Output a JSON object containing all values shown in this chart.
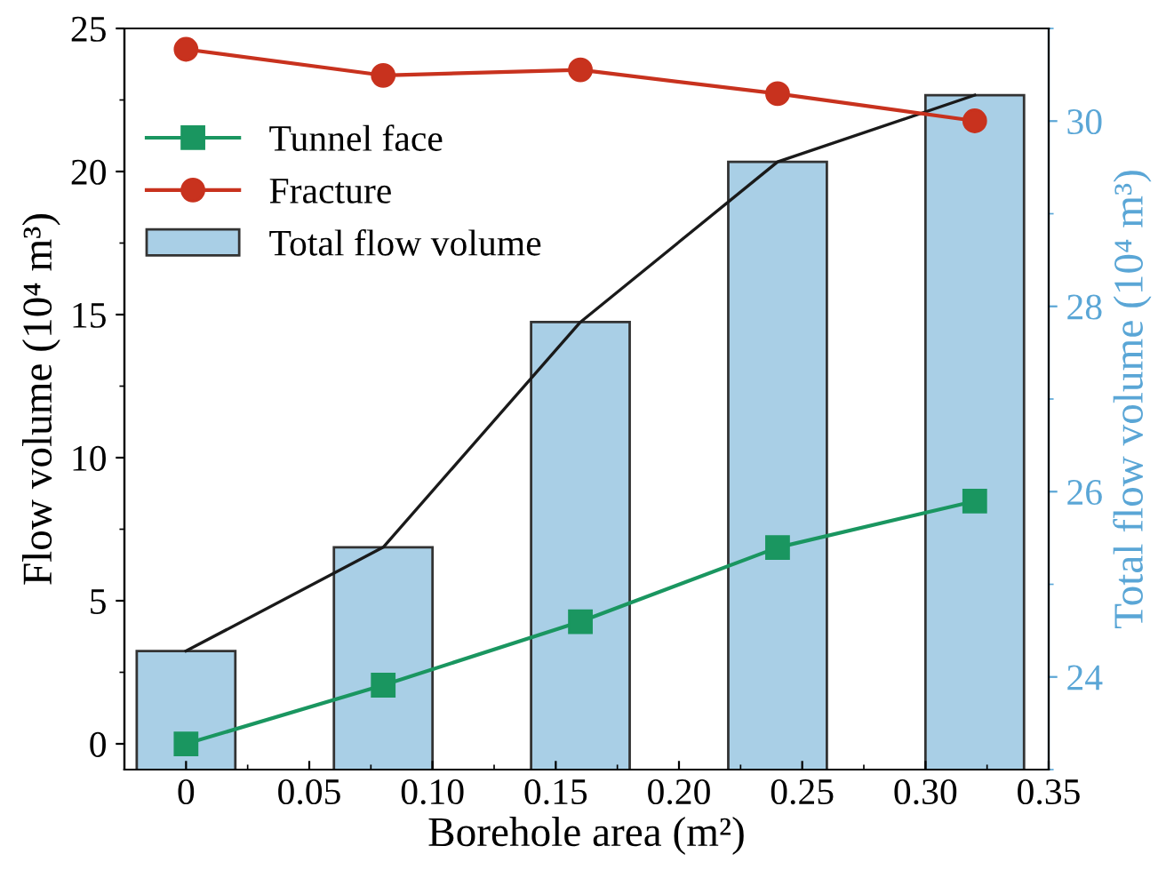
{
  "chart_data": {
    "type": "line",
    "xlabel": "Borehole area (m²)",
    "ylabel": "Flow volume (10⁴ m³)",
    "y2label": "Total flow volume (10⁴ m³)",
    "x": [
      0,
      0.08,
      0.16,
      0.24,
      0.32
    ],
    "xlim": [
      -0.025,
      0.35
    ],
    "xticks": [
      0,
      0.05,
      {
        "value": 0.1,
        "label": "0.10"
      },
      0.15,
      {
        "value": 0.2,
        "label": "0.20"
      },
      0.25,
      {
        "value": 0.3,
        "label": "0.30"
      },
      0.35
    ],
    "ylim": [
      -0.9,
      25
    ],
    "yticks": [
      0,
      5,
      10,
      15,
      20,
      25
    ],
    "y2lim": [
      23,
      31
    ],
    "y2ticks": [
      24,
      26,
      28,
      30
    ],
    "series": [
      {
        "name": "Tunnel face",
        "marker": "square",
        "color": "#1a9660",
        "values": [
          0,
          2.05,
          4.27,
          6.86,
          8.48
        ]
      },
      {
        "name": "Fracture",
        "marker": "circle",
        "color": "#c8321e",
        "values": [
          24.27,
          23.36,
          23.55,
          22.72,
          21.77
        ]
      },
      {
        "name": "Total flow volume",
        "type": "bar",
        "axis": "y2",
        "color": "#a9cfe6",
        "values": [
          24.28,
          25.4,
          27.83,
          29.56,
          30.28
        ]
      },
      {
        "axis": "y2",
        "color": "#1a1a1a",
        "values": [
          24.28,
          25.4,
          27.83,
          29.56,
          30.28
        ]
      }
    ],
    "legend": "top left",
    "grid": false
  }
}
